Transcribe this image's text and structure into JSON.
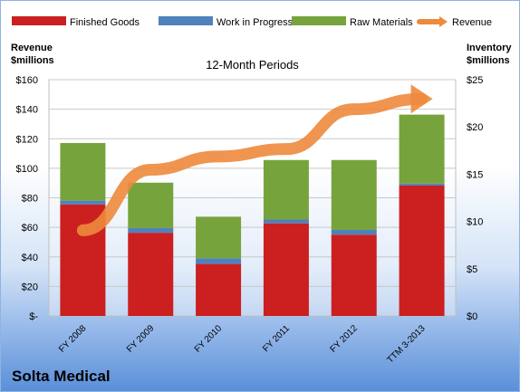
{
  "chart_data": {
    "type": "bar",
    "stacked": true,
    "title": "12-Month Periods",
    "categories": [
      "FY 2008",
      "FY 2009",
      "FY 2010",
      "FY 2011",
      "FY 2012",
      "TTM 3-2013"
    ],
    "left_axis": {
      "label_line1": "Revenue",
      "label_line2": "$millions",
      "range": [
        0,
        160
      ],
      "ticks": [
        "$-",
        "$20",
        "$40",
        "$60",
        "$80",
        "$100",
        "$120",
        "$140",
        "$160"
      ]
    },
    "right_axis": {
      "label_line1": "Inventory",
      "label_line2": "$millions",
      "range": [
        0,
        25
      ],
      "ticks": [
        "$0",
        "$5",
        "$10",
        "$15",
        "$20",
        "$25"
      ]
    },
    "series": [
      {
        "name": "Finished Goods",
        "axis": "right",
        "color": "#cc1f1f",
        "values": [
          11.8,
          8.8,
          5.5,
          9.8,
          8.6,
          13.8
        ]
      },
      {
        "name": "Work in Progress",
        "axis": "right",
        "color": "#4f81bd",
        "values": [
          0.4,
          0.5,
          0.6,
          0.4,
          0.5,
          0.2
        ]
      },
      {
        "name": "Raw Materials",
        "axis": "right",
        "color": "#77a33d",
        "values": [
          6.1,
          4.8,
          4.4,
          6.3,
          7.4,
          7.3
        ]
      },
      {
        "name": "Revenue",
        "axis": "left",
        "type": "line",
        "color": "#ed8a3c",
        "values": [
          58,
          99,
          108,
          113,
          140,
          147
        ]
      }
    ],
    "legend_position": "top",
    "grid": true
  },
  "company_name": "Solta Medical"
}
